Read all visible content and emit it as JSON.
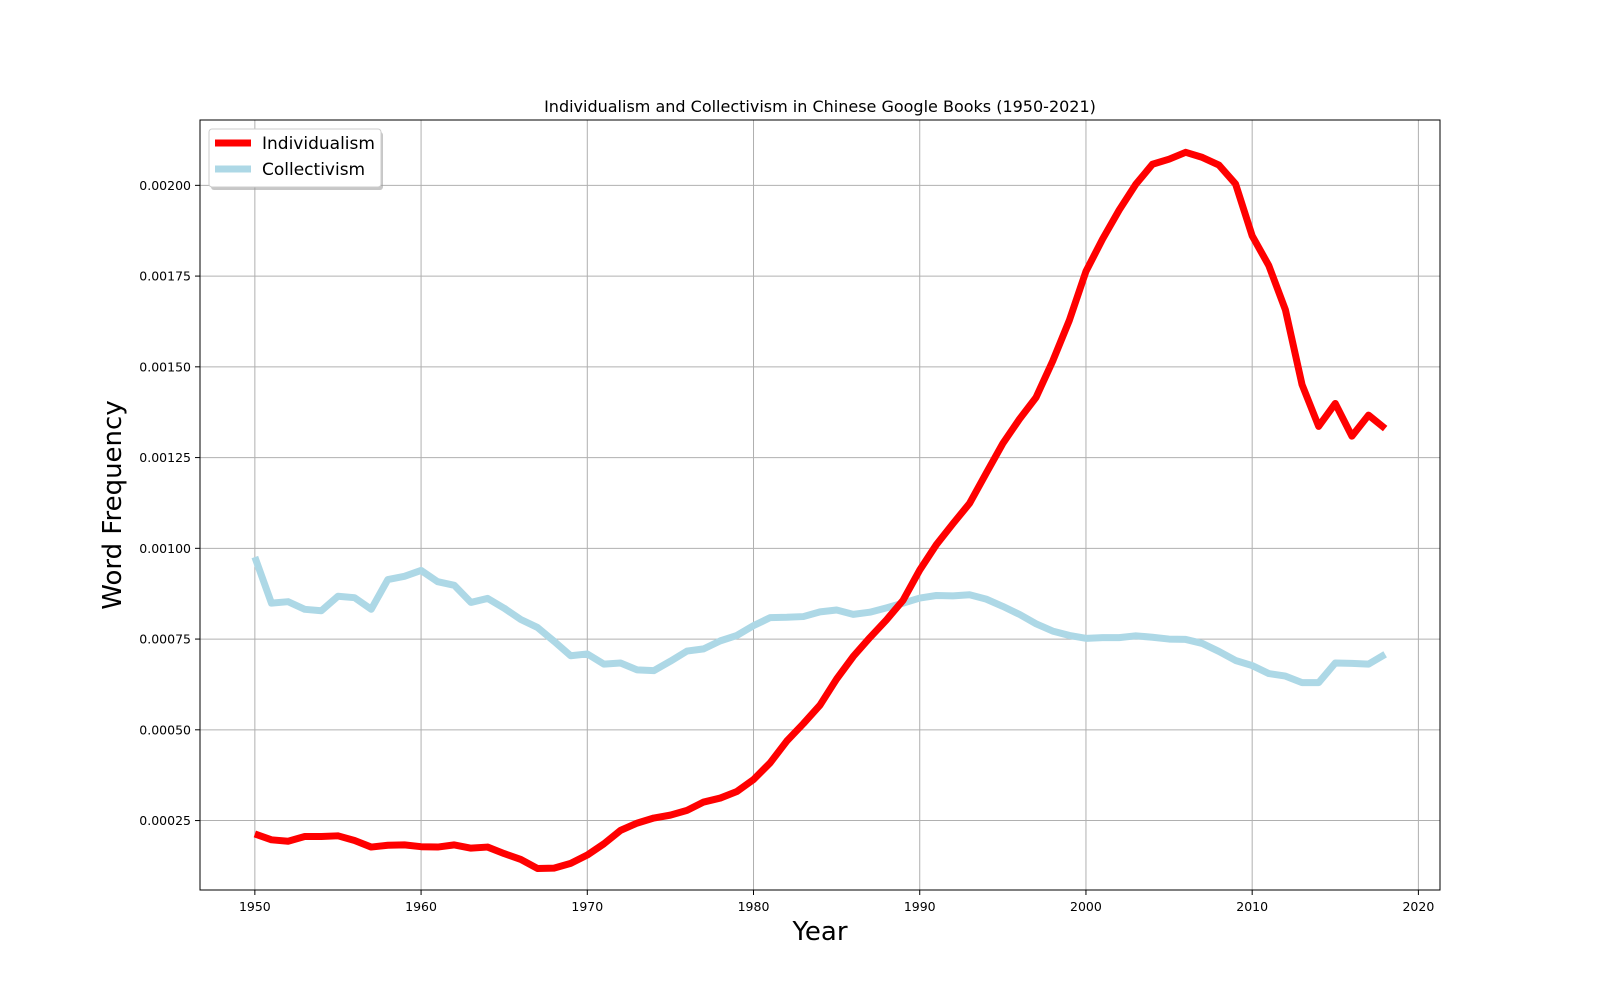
{
  "chart_data": {
    "type": "line",
    "title": "Individualism and Collectivism in Chinese Google Books (1950-2021)",
    "xlabel": "Year",
    "ylabel": "Word Frequency",
    "xlim": [
      1946.7,
      2021.3
    ],
    "ylim": [
      5.87e-05,
      0.00218
    ],
    "xticks": [
      1950,
      1960,
      1970,
      1980,
      1990,
      2000,
      2010,
      2020
    ],
    "yticks": [
      0.00025,
      0.0005,
      0.00075,
      0.001,
      0.00125,
      0.0015,
      0.00175,
      0.002
    ],
    "xtick_labels": [
      "1950",
      "1960",
      "1970",
      "1980",
      "1990",
      "2000",
      "2010",
      "2020"
    ],
    "ytick_labels": [
      "0.00025",
      "0.00050",
      "0.00075",
      "0.00100",
      "0.00125",
      "0.00150",
      "0.00175",
      "0.00200"
    ],
    "grid": true,
    "legend_position": "top-left",
    "x": [
      1950,
      1951,
      1952,
      1953,
      1954,
      1955,
      1956,
      1957,
      1958,
      1959,
      1960,
      1961,
      1962,
      1963,
      1964,
      1965,
      1966,
      1967,
      1968,
      1969,
      1970,
      1971,
      1972,
      1973,
      1974,
      1975,
      1976,
      1977,
      1978,
      1979,
      1980,
      1981,
      1982,
      1983,
      1984,
      1985,
      1986,
      1987,
      1988,
      1989,
      1990,
      1991,
      1992,
      1993,
      1994,
      1995,
      1996,
      1997,
      1998,
      1999,
      2000,
      2001,
      2002,
      2003,
      2004,
      2005,
      2006,
      2007,
      2008,
      2009,
      2010,
      2011,
      2012,
      2013,
      2014,
      2015,
      2016,
      2017,
      2018
    ],
    "series": [
      {
        "name": "Individualism",
        "color": "#ff0000",
        "values": [
          0.000213,
          0.000197,
          0.000193,
          0.000206,
          0.000206,
          0.000208,
          0.000195,
          0.000177,
          0.000182,
          0.000183,
          0.000178,
          0.000177,
          0.000183,
          0.000174,
          0.000177,
          0.000159,
          0.000143,
          0.000118,
          0.000119,
          0.000132,
          0.000155,
          0.000186,
          0.000223,
          0.000243,
          0.000257,
          0.000265,
          0.000278,
          0.000301,
          0.000312,
          0.00033,
          0.000363,
          0.000409,
          0.000469,
          0.000517,
          0.000568,
          0.00064,
          0.000702,
          0.000754,
          0.000803,
          0.000857,
          0.00094,
          0.00101,
          0.001068,
          0.001124,
          0.001207,
          0.001289,
          0.001356,
          0.001416,
          0.001516,
          0.001628,
          0.001763,
          0.001852,
          0.001932,
          0.002003,
          0.002058,
          0.002072,
          0.002091,
          0.002077,
          0.002056,
          0.002004,
          0.001861,
          0.001779,
          0.001657,
          0.001451,
          0.001336,
          0.001399,
          0.001309,
          0.001367,
          0.00133
        ]
      },
      {
        "name": "Collectivism",
        "color": "#add8e6",
        "values": [
          0.000976,
          0.000849,
          0.000853,
          0.000832,
          0.000828,
          0.000868,
          0.000864,
          0.000832,
          0.000914,
          0.000923,
          0.000939,
          0.000908,
          0.000898,
          0.000851,
          0.000862,
          0.000835,
          0.000804,
          0.000782,
          0.000744,
          0.000704,
          0.000709,
          0.000681,
          0.000684,
          0.000665,
          0.000663,
          0.000689,
          0.000717,
          0.000723,
          0.000745,
          0.00076,
          0.000787,
          0.000809,
          0.00081,
          0.000812,
          0.000825,
          0.00083,
          0.000818,
          0.000824,
          0.000836,
          0.000849,
          0.000863,
          0.00087,
          0.000869,
          0.000872,
          0.00086,
          0.00084,
          0.000818,
          0.000792,
          0.000772,
          0.00076,
          0.000752,
          0.000754,
          0.000754,
          0.000759,
          0.000755,
          0.00075,
          0.000749,
          0.000738,
          0.000716,
          0.000691,
          0.000677,
          0.000655,
          0.000648,
          0.00063,
          0.00063,
          0.000684,
          0.000683,
          0.000681,
          0.000708
        ]
      }
    ]
  }
}
